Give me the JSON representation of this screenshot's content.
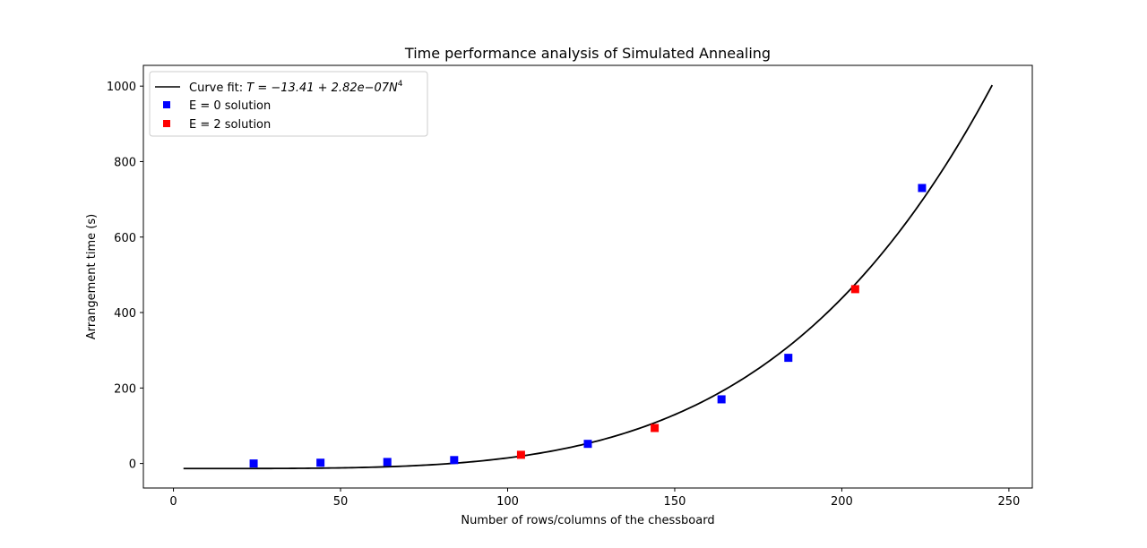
{
  "chart_data": {
    "type": "scatter",
    "title": "Time performance analysis of Simulated Annealing",
    "xlabel": "Number of rows/columns of the chessboard",
    "ylabel": "Arrangement time (s)",
    "xlim": [
      -9,
      257
    ],
    "ylim": [
      -65,
      1055
    ],
    "xticks": [
      0,
      50,
      100,
      150,
      200,
      250
    ],
    "yticks": [
      0,
      200,
      400,
      600,
      800,
      1000
    ],
    "legend_position": "upper-left",
    "fit": {
      "name": "Curve fit: T = −13.41 + 2.82e−07N⁴",
      "label_prefix": "Curve fit: ",
      "formula_main": "T = −13.41 + 2.82e−07N",
      "formula_exp": "4",
      "intercept": -13.41,
      "coef": 2.82e-07,
      "power": 4,
      "x_range": [
        3,
        245
      ],
      "color": "#000000"
    },
    "series": [
      {
        "name": "E = 0 solution",
        "color": "#0000ff",
        "marker": "square",
        "points": [
          {
            "x": 24,
            "y": 0
          },
          {
            "x": 44,
            "y": 2
          },
          {
            "x": 64,
            "y": 4
          },
          {
            "x": 84,
            "y": 9
          },
          {
            "x": 124,
            "y": 52
          },
          {
            "x": 164,
            "y": 170
          },
          {
            "x": 184,
            "y": 280
          },
          {
            "x": 224,
            "y": 730
          }
        ]
      },
      {
        "name": "E = 2 solution",
        "color": "#ff0000",
        "marker": "square",
        "points": [
          {
            "x": 104,
            "y": 23
          },
          {
            "x": 144,
            "y": 94
          },
          {
            "x": 204,
            "y": 462
          }
        ]
      }
    ]
  }
}
